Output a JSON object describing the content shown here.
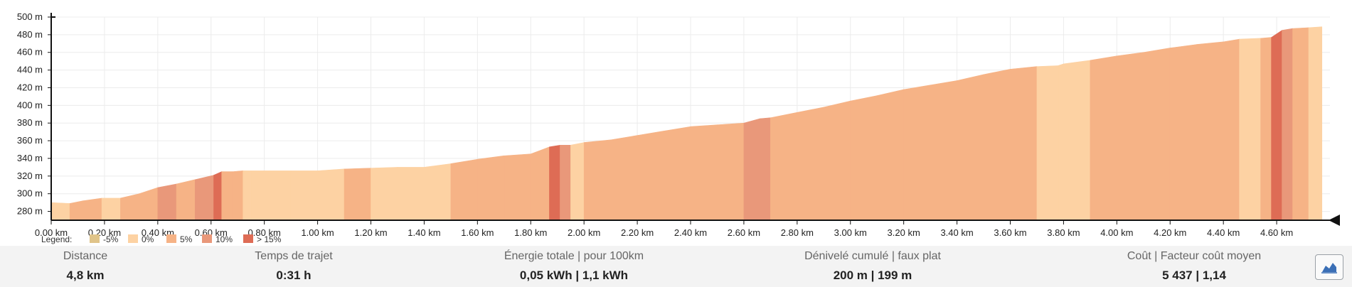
{
  "chart_data": {
    "type": "area",
    "x_unit": "km",
    "y_unit": "m",
    "ylim": [
      270,
      500
    ],
    "xlim": [
      0,
      4.8
    ],
    "x_ticks": [
      "0.00 km",
      "0.20 km",
      "0.40 km",
      "0.60 km",
      "0.80 km",
      "1.00 km",
      "1.20 km",
      "1.40 km",
      "1.60 km",
      "1.80 km",
      "2.00 km",
      "2.20 km",
      "2.40 km",
      "2.60 km",
      "2.80 km",
      "3.00 km",
      "3.20 km",
      "3.40 km",
      "3.60 km",
      "3.80 km",
      "4.00 km",
      "4.20 km",
      "4.40 km",
      "4.60 km"
    ],
    "y_ticks": [
      "280 m",
      "300 m",
      "320 m",
      "340 m",
      "360 m",
      "380 m",
      "400 m",
      "420 m",
      "440 m",
      "460 m",
      "480 m",
      "500 m"
    ],
    "grid": true,
    "legend": {
      "title": "Legend:",
      "items": [
        {
          "label": "-5%",
          "color": "#e0c489"
        },
        {
          "label": "0%",
          "color": "#fdd2a3"
        },
        {
          "label": "5%",
          "color": "#f6b386"
        },
        {
          "label": "10%",
          "color": "#e9987a"
        },
        {
          "label": "> 15%",
          "color": "#de6c55"
        }
      ]
    },
    "x": [
      0,
      0.07,
      0.12,
      0.19,
      0.26,
      0.33,
      0.4,
      0.47,
      0.54,
      0.61,
      0.64,
      0.68,
      0.72,
      0.75,
      0.82,
      0.9,
      1.0,
      1.1,
      1.2,
      1.3,
      1.4,
      1.5,
      1.6,
      1.7,
      1.8,
      1.87,
      1.91,
      1.95,
      2.0,
      2.1,
      2.2,
      2.3,
      2.4,
      2.5,
      2.6,
      2.66,
      2.7,
      2.8,
      2.9,
      3.0,
      3.1,
      3.2,
      3.3,
      3.4,
      3.5,
      3.6,
      3.7,
      3.78,
      3.8,
      3.9,
      4.0,
      4.1,
      4.2,
      4.3,
      4.4,
      4.46,
      4.54,
      4.58,
      4.62,
      4.66,
      4.72,
      4.77
    ],
    "elevation": [
      290,
      289,
      292,
      295,
      295,
      300,
      307,
      311,
      316,
      321,
      325,
      325,
      326,
      326,
      326,
      326,
      326,
      328,
      329,
      330,
      330,
      334,
      339,
      343,
      345,
      353,
      355,
      355,
      358,
      361,
      366,
      371,
      376,
      378,
      380,
      385,
      386,
      392,
      398,
      405,
      411,
      418,
      423,
      428,
      435,
      441,
      444,
      445,
      447,
      451,
      456,
      460,
      465,
      469,
      472,
      475,
      476,
      477,
      485,
      487,
      488,
      489
    ],
    "grade_class": [
      "0%",
      "5%",
      "5%",
      "0%",
      "5%",
      "5%",
      "10%",
      "5%",
      "10%",
      "> 15%",
      "5%",
      "5%",
      "0%",
      "0%",
      "0%",
      "0%",
      "0%",
      "5%",
      "0%",
      "0%",
      "0%",
      "5%",
      "5%",
      "5%",
      "5%",
      "> 15%",
      "10%",
      "0%",
      "5%",
      "5%",
      "5%",
      "5%",
      "5%",
      "5%",
      "10%",
      "10%",
      "5%",
      "5%",
      "5%",
      "5%",
      "5%",
      "5%",
      "5%",
      "5%",
      "5%",
      "5%",
      "0%",
      "0%",
      "0%",
      "5%",
      "5%",
      "5%",
      "5%",
      "5%",
      "5%",
      "0%",
      "5%",
      "> 15%",
      "10%",
      "5%",
      "0%"
    ]
  },
  "stats": [
    {
      "label": "Distance",
      "value": "4,8 km"
    },
    {
      "label": "Temps de trajet",
      "value": "0:31 h"
    },
    {
      "label": "Énergie totale | pour 100km",
      "value": "0,05 kWh | 1,1 kWh"
    },
    {
      "label": "Dénivelé cumulé | faux plat",
      "value": "200 m | 199 m"
    },
    {
      "label": "Coût | Facteur coût moyen",
      "value": "5 437 | 1,14"
    }
  ],
  "toggle_button": {
    "icon": "area-chart-icon"
  }
}
